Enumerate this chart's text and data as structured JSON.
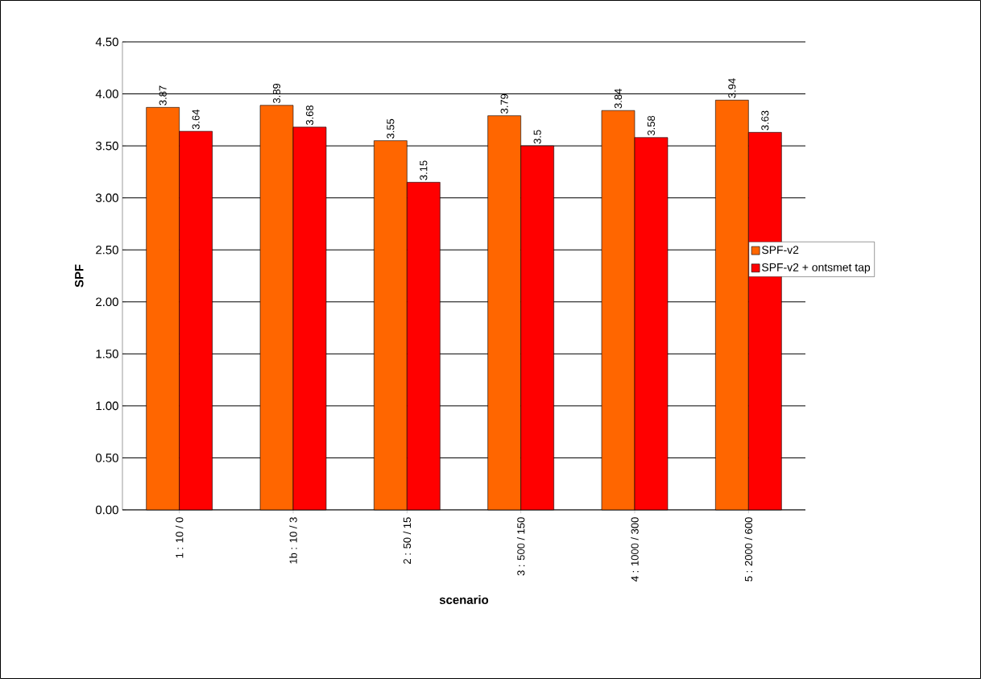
{
  "chart_data": {
    "type": "bar",
    "xlabel": "scenario",
    "ylabel": "SPF",
    "categories": [
      "1 : 10 / 0",
      "1b : 10 / 3",
      "2 : 50 / 15",
      "3 : 500 / 150",
      "4 : 1000 / 300",
      "5 : 2000 / 600"
    ],
    "series": [
      {
        "name": "SPF-v2",
        "color": "#ff6600",
        "values": [
          3.87,
          3.89,
          3.55,
          3.79,
          3.84,
          3.94
        ],
        "value_labels": [
          "3.87",
          "3.89",
          "3.55",
          "3.79",
          "3.84",
          "3.94"
        ]
      },
      {
        "name": "SPF-v2 + ontsmet tap",
        "color": "#ff0000",
        "values": [
          3.64,
          3.68,
          3.15,
          3.5,
          3.58,
          3.63
        ],
        "value_labels": [
          "3.64",
          "3.68",
          "3.15",
          "3.5",
          "3.58",
          "3.63"
        ]
      }
    ],
    "ylim": [
      0,
      4.5
    ],
    "yticks": [
      {
        "value": 0,
        "label": "0.00"
      },
      {
        "value": 0.5,
        "label": "0.50"
      },
      {
        "value": 1,
        "label": "1.00"
      },
      {
        "value": 1.5,
        "label": "1.50"
      },
      {
        "value": 2,
        "label": "2.00"
      },
      {
        "value": 2.5,
        "label": "2.50"
      },
      {
        "value": 3,
        "label": "3.00"
      },
      {
        "value": 3.5,
        "label": "3.50"
      },
      {
        "value": 4,
        "label": "4.00"
      },
      {
        "value": 4.5,
        "label": "4.50"
      }
    ],
    "grid": "y",
    "legend": "right"
  }
}
